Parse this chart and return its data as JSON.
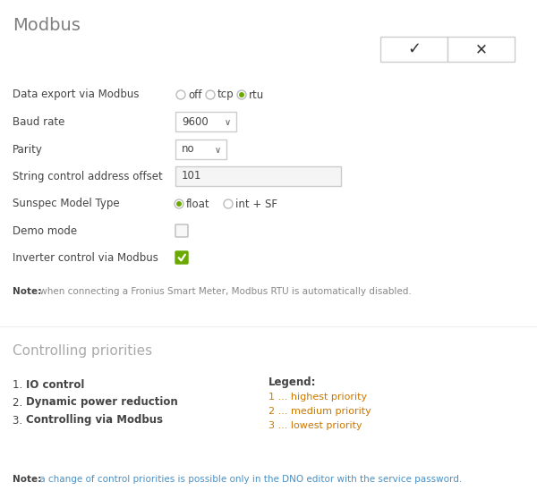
{
  "title": "Modbus",
  "bg_color": "#ffffff",
  "title_color": "#808080",
  "label_color": "#444444",
  "green_color": "#6aaa00",
  "orange_color": "#cc7700",
  "gray_color": "#888888",
  "blue_color": "#4a90c4",
  "note_bold_color": "#444444",
  "note_gray_color": "#888888",
  "border_color": "#cccccc",
  "radio_options": [
    "off",
    "tcp",
    "rtu"
  ],
  "radio_selected": 2,
  "baud_rate_value": "9600",
  "parity_value": "no",
  "address_offset_value": "101",
  "sunspec_options": [
    "float",
    "int + SF"
  ],
  "sunspec_selected": 0,
  "priorities_title": "Controlling priorities",
  "priorities_title_color": "#aaaaaa",
  "priorities": [
    "IO control",
    "Dynamic power reduction",
    "Controlling via Modbus"
  ],
  "legend_title": "Legend:",
  "legend_items": [
    "1 ... highest priority",
    "2 ... medium priority",
    "3 ... lowest priority"
  ],
  "legend_color": "#cc7700",
  "note1_bold": "Note:",
  "note1_text": " when connecting a Fronius Smart Meter, Modbus RTU is automatically disabled.",
  "note1_text_color": "#888888",
  "note2_bold": "Note:",
  "note2_text": " a change of control priorities is possible only in the DNO editor with the service password.",
  "note2_text_color": "#4a90c4"
}
